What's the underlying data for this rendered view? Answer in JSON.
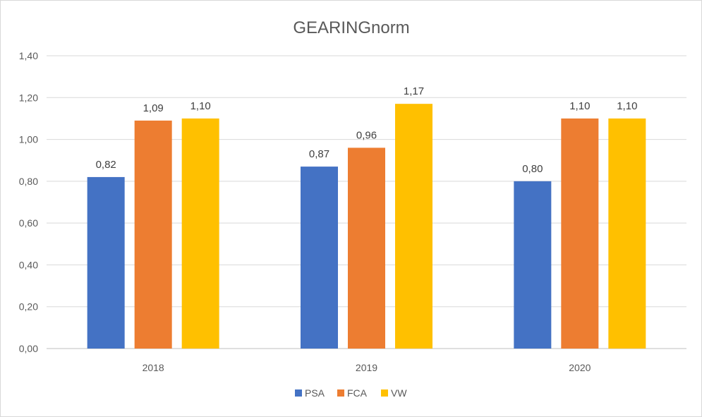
{
  "chart_data": {
    "type": "bar",
    "title": "GEARINGnorm",
    "categories": [
      "2018",
      "2019",
      "2020"
    ],
    "series": [
      {
        "name": "PSA",
        "color": "#4472c4",
        "values": [
          0.82,
          0.87,
          0.8
        ],
        "labels": [
          "0,82",
          "0,87",
          "0,80"
        ]
      },
      {
        "name": "FCA",
        "color": "#ed7d31",
        "values": [
          1.09,
          0.96,
          1.1
        ],
        "labels": [
          "1,09",
          "0,96",
          "1,10"
        ]
      },
      {
        "name": "VW",
        "color": "#ffc000",
        "values": [
          1.1,
          1.17,
          1.1
        ],
        "labels": [
          "1,10",
          "1,17",
          "1,10"
        ]
      }
    ],
    "ylim": [
      0,
      1.4
    ],
    "y_ticks": [
      0,
      0.2,
      0.4,
      0.6,
      0.8,
      1.0,
      1.2,
      1.4
    ],
    "y_tick_labels": [
      "0,00",
      "0,20",
      "0,40",
      "0,60",
      "0,80",
      "1,00",
      "1,20",
      "1,40"
    ],
    "xlabel": "",
    "ylabel": "",
    "grid": true,
    "legend_position": "bottom-center"
  }
}
